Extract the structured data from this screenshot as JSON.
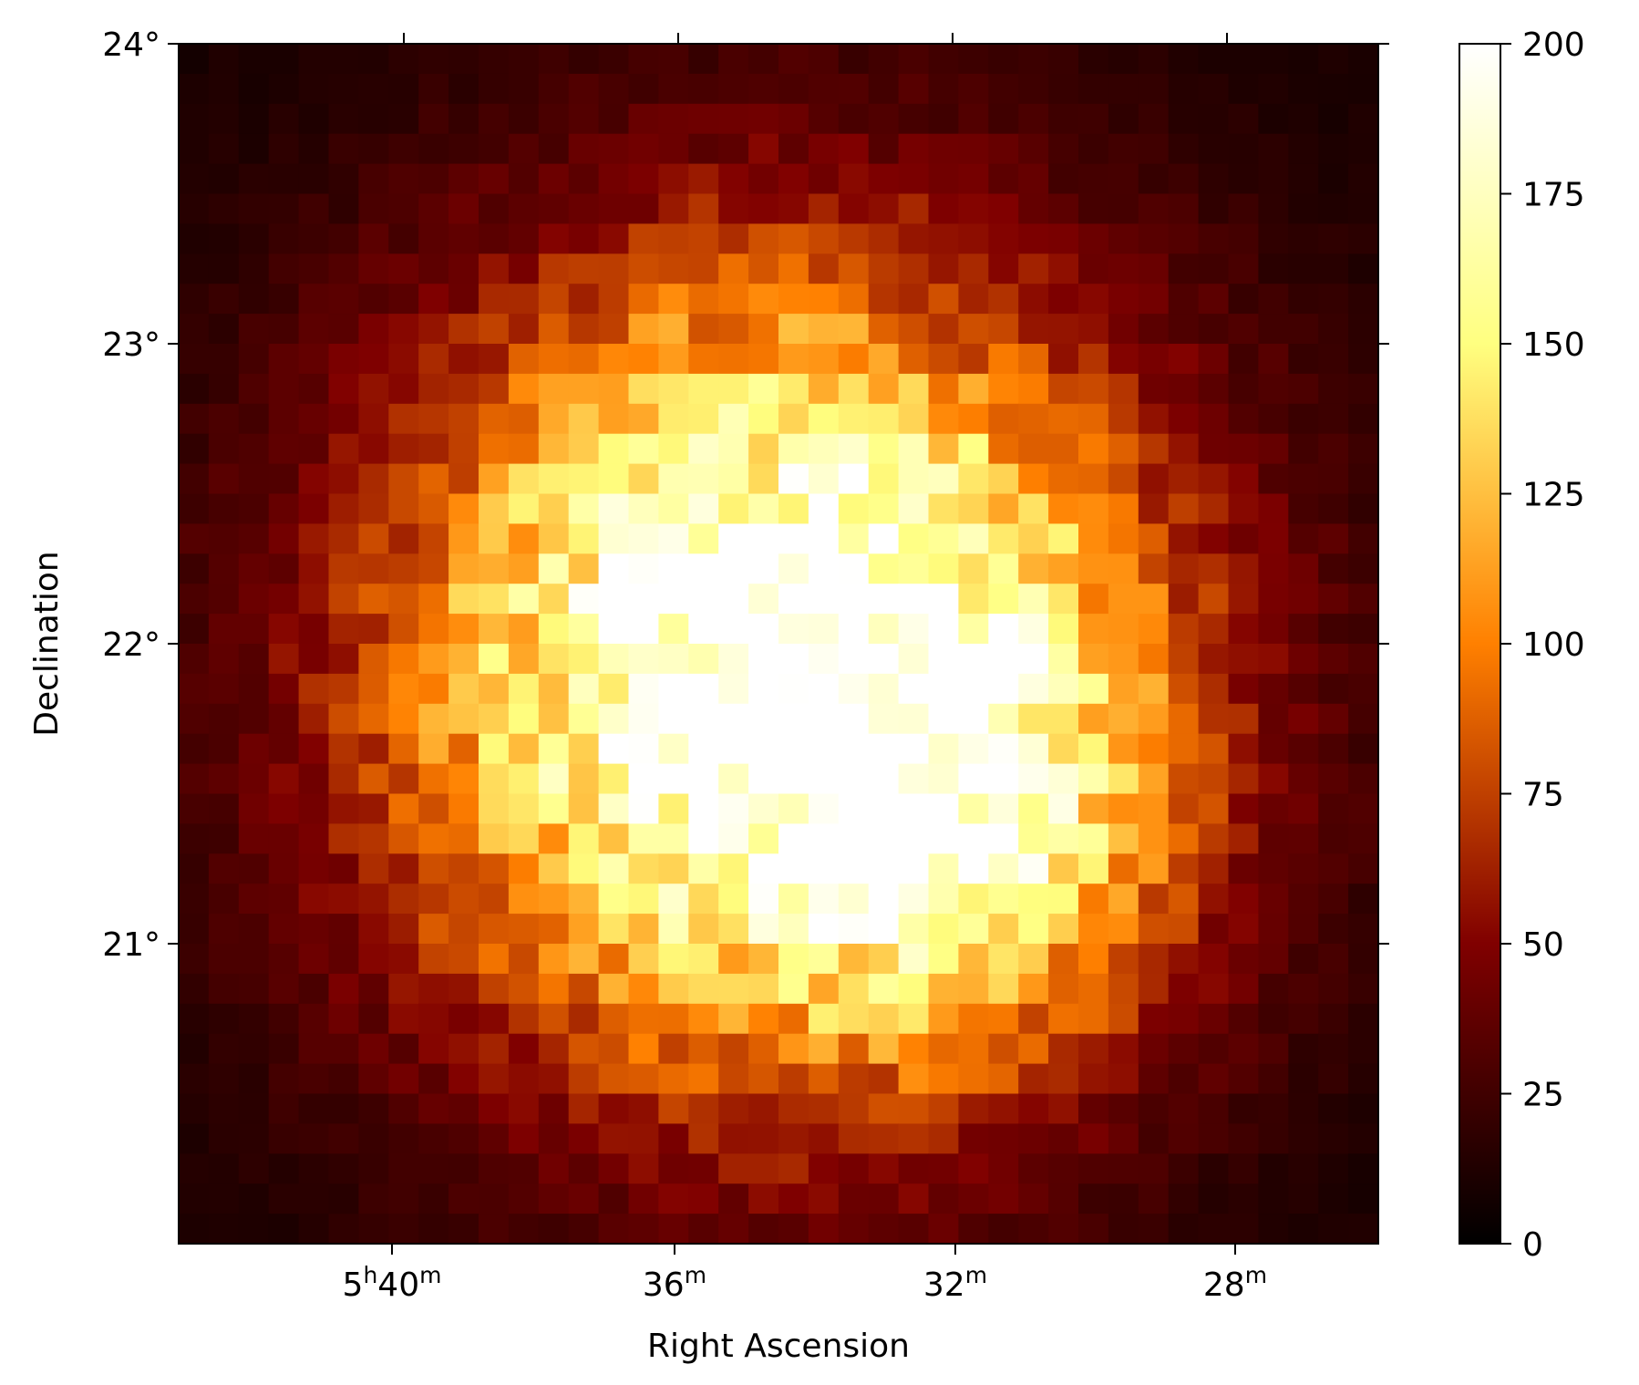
{
  "chart_data": {
    "type": "heatmap",
    "title": "",
    "xlabel": "Right Ascension",
    "ylabel": "Declination",
    "colormap": "afmhot",
    "colormap_stops": [
      "#000000",
      "#800000",
      "#ff8000",
      "#ffff80",
      "#ffffff"
    ],
    "color_range": [
      0,
      200
    ],
    "colorbar_ticks": [
      "0",
      "25",
      "50",
      "75",
      "100",
      "125",
      "150",
      "175",
      "200"
    ],
    "grid_columns": 40,
    "grid_rows": 40,
    "x_ticks": [
      {
        "h": "5",
        "m": "40",
        "label_text": "5h40m"
      },
      {
        "h": "",
        "m": "36",
        "label_text": "36m"
      },
      {
        "h": "",
        "m": "32",
        "label_text": "32m"
      },
      {
        "h": "",
        "m": "28",
        "label_text": "28m"
      }
    ],
    "y_ticks": [
      "24°",
      "23°",
      "22°",
      "21°"
    ],
    "ra_range_min": [
      42.0,
      25.0
    ],
    "dec_range_deg": [
      20.0,
      24.0
    ],
    "intensity_model": {
      "peak_value": 205,
      "center_ra_min": 33.6,
      "center_dec_deg": 21.9,
      "background": 8,
      "secondary_peak_value": 60,
      "secondary_center_ra_min": 30.8,
      "secondary_center_dec_deg": 21.4,
      "noise_seed": 7
    }
  }
}
